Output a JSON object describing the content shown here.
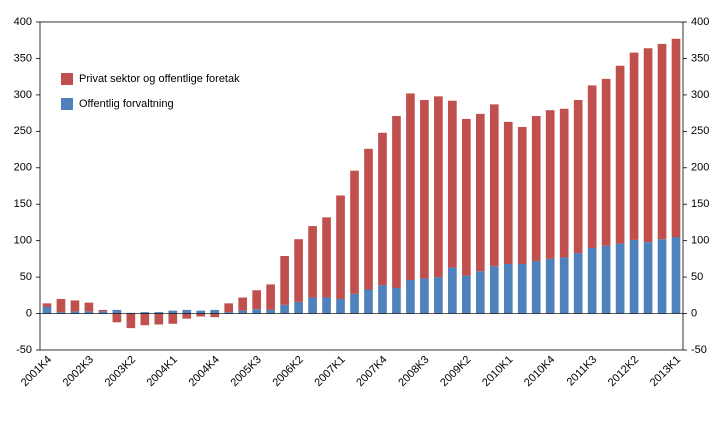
{
  "chart_data": {
    "type": "stacked-bar",
    "categories": [
      "2001K4",
      null,
      null,
      "2002K3",
      null,
      null,
      "2003K2",
      null,
      null,
      "2004K1",
      null,
      null,
      "2004K4",
      null,
      null,
      "2005K3",
      null,
      null,
      "2006K2",
      null,
      null,
      "2007K1",
      null,
      null,
      "2007K4",
      null,
      null,
      "2008K3",
      null,
      null,
      "2009K2",
      null,
      null,
      "2010K1",
      null,
      null,
      "2010K4",
      null,
      null,
      "2011K3",
      null,
      null,
      "2012K2",
      null,
      null,
      "2013K1"
    ],
    "series": [
      {
        "name": "Privat sektor og offentlige foretak",
        "color": "#c0504d",
        "values": [
          5,
          18,
          15,
          12,
          2,
          -12,
          -20,
          -16,
          -15,
          -14,
          -7,
          -4,
          -5,
          12,
          18,
          26,
          35,
          67,
          86,
          98,
          110,
          142,
          169,
          193,
          209,
          236,
          256,
          245,
          248,
          229,
          215,
          216,
          222,
          195,
          188,
          199,
          204,
          204,
          210,
          223,
          229,
          244,
          257,
          266,
          268,
          272
        ]
      },
      {
        "name": "Offentlig forvaltning",
        "color": "#4f81bd",
        "values": [
          9,
          2,
          3,
          3,
          3,
          5,
          1,
          2,
          2,
          4,
          5,
          4,
          5,
          2,
          4,
          6,
          5,
          12,
          16,
          22,
          22,
          20,
          27,
          33,
          39,
          35,
          46,
          48,
          50,
          63,
          52,
          58,
          65,
          68,
          68,
          72,
          75,
          77,
          83,
          90,
          93,
          96,
          101,
          98,
          102,
          105
        ]
      }
    ],
    "ylim": [
      -50,
      400
    ],
    "yticks": [
      -50,
      0,
      50,
      100,
      150,
      200,
      250,
      300,
      350,
      400
    ],
    "grid": false,
    "legend": "top-left"
  }
}
